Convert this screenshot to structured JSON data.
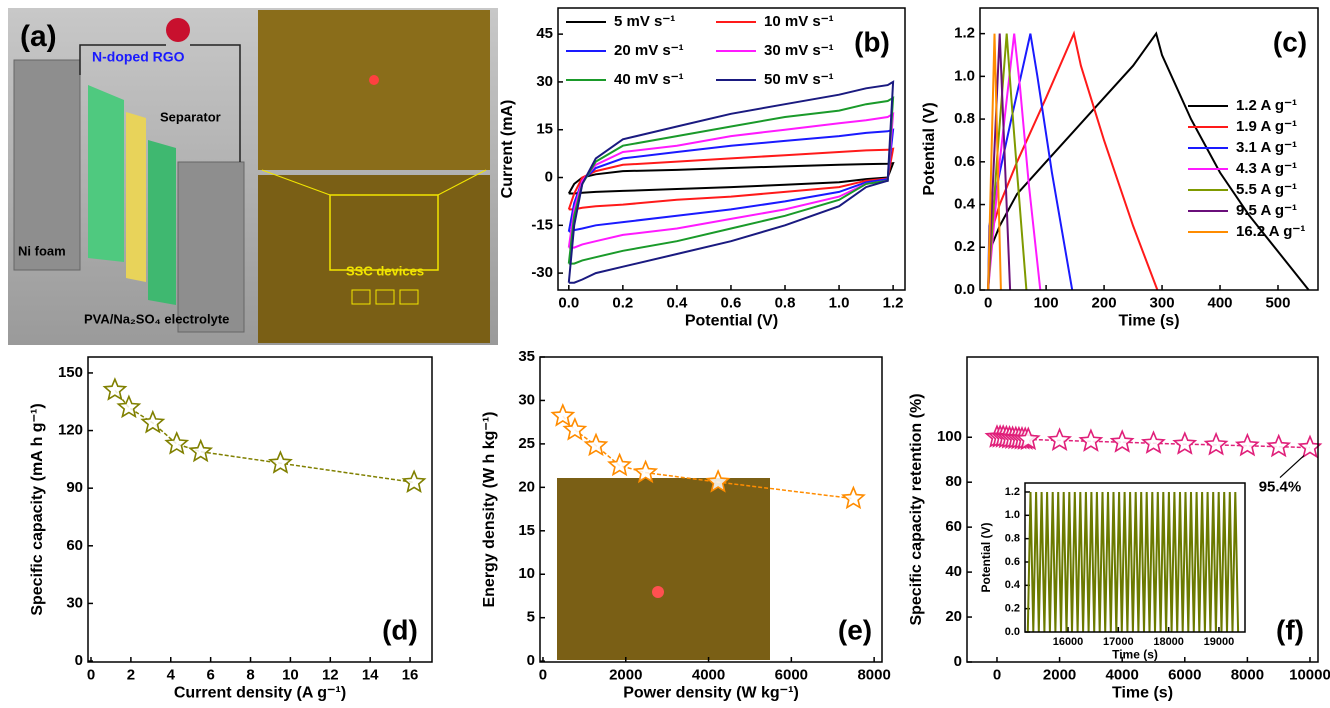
{
  "schematic": {
    "panel_label": "(a)",
    "labels": [
      "N-doped RGO",
      "Separator",
      "Ni foam",
      "PVA/Na₂SO₄ electrolyte",
      "SSC devices"
    ]
  },
  "chart_data": [
    {
      "type": "line",
      "panel_label": "(b)",
      "xlabel": "Potential (V)",
      "ylabel": "Current (mA)",
      "xlim": [
        -0.04,
        1.244
      ],
      "ylim": [
        -35.3,
        53.2
      ],
      "xticks": [
        {
          "value": 0,
          "label": "0.0"
        },
        0.2,
        0.4,
        0.6,
        0.8,
        {
          "value": 1,
          "label": "1.0"
        },
        1.2
      ],
      "yticks": [
        -30,
        -15,
        0,
        15,
        30,
        45
      ],
      "x": [
        0,
        0.02,
        0.05,
        0.1,
        0.2,
        0.4,
        0.6,
        0.8,
        1.0,
        1.1,
        1.18,
        1.2,
        1.18,
        1.1,
        1.0,
        0.8,
        0.6,
        0.4,
        0.2,
        0.1,
        0.05,
        0.02,
        0
      ],
      "legend": "upper left",
      "series": [
        {
          "name": "5 mV s⁻¹",
          "color": "#000000",
          "values": [
            -5,
            -2,
            0,
            1,
            2,
            2.4,
            3,
            3.5,
            4,
            4.2,
            4.3,
            4.5,
            0,
            -0.5,
            -1.5,
            -2.3,
            -3,
            -3.6,
            -4.2,
            -4.5,
            -4.8,
            -5,
            -5
          ]
        },
        {
          "name": "10 mV s⁻¹",
          "color": "#ff1a1a",
          "values": [
            -10,
            -5,
            0,
            2,
            4,
            5,
            6,
            7,
            8,
            8.5,
            8.7,
            9,
            -0.3,
            -1,
            -3,
            -4.5,
            -6,
            -7,
            -8.5,
            -9,
            -9.5,
            -10,
            -10
          ]
        },
        {
          "name": "20 mV s⁻¹",
          "color": "#1a1aff",
          "values": [
            -17,
            -8,
            -1,
            3,
            6,
            8,
            10,
            11.5,
            13,
            14,
            14.5,
            15,
            -0.5,
            -1.5,
            -4.5,
            -7.5,
            -10,
            -12,
            -14,
            -15,
            -16,
            -16.5,
            -17
          ]
        },
        {
          "name": "30 mV s⁻¹",
          "color": "#ff1aff",
          "values": [
            -22,
            -10,
            -1,
            4,
            8,
            10,
            13,
            15,
            17,
            18,
            19,
            20,
            -1,
            -2,
            -6,
            -10,
            -13,
            -16,
            -18,
            -20,
            -21,
            -22,
            -22
          ]
        },
        {
          "name": "40 mV s⁻¹",
          "color": "#1a9a2a",
          "values": [
            -27,
            -12,
            -2,
            5,
            10,
            13,
            16,
            19,
            21,
            23,
            24,
            25,
            -1,
            -2,
            -7,
            -12,
            -16,
            -20,
            -23,
            -25,
            -26,
            -27,
            -27
          ]
        },
        {
          "name": "50 mV s⁻¹",
          "color": "#1a1a80",
          "values": [
            -33,
            -15,
            -2,
            6,
            12,
            16,
            20,
            23,
            26,
            28,
            29,
            30,
            -1,
            -3,
            -9,
            -15,
            -20,
            -24,
            -28,
            -30,
            -32,
            -33,
            -33
          ]
        }
      ]
    },
    {
      "type": "line",
      "panel_label": "(c)",
      "xlabel": "Time (s)",
      "ylabel": "Potential (V)",
      "xlim": [
        -14,
        569
      ],
      "ylim": [
        0,
        1.32
      ],
      "xticks": [
        0,
        100,
        200,
        300,
        400,
        500
      ],
      "yticks": [
        {
          "value": 0,
          "label": "0.0"
        },
        0.2,
        0.4,
        0.6,
        0.8,
        {
          "value": 1,
          "label": "1.0"
        },
        1.2
      ],
      "legend": "right",
      "series": [
        {
          "name": "1.2 A g⁻¹",
          "color": "#000000",
          "x": [
            0,
            5,
            20,
            50,
            100,
            150,
            200,
            250,
            290,
            300,
            350,
            400,
            450,
            500,
            553
          ],
          "values": [
            0,
            0.2,
            0.3,
            0.45,
            0.6,
            0.75,
            0.9,
            1.05,
            1.2,
            1.1,
            0.8,
            0.55,
            0.35,
            0.18,
            0
          ]
        },
        {
          "name": "1.9 A g⁻¹",
          "color": "#ff1a1a",
          "x": [
            0,
            3,
            20,
            50,
            100,
            148,
            160,
            200,
            250,
            292
          ],
          "values": [
            0,
            0.25,
            0.4,
            0.6,
            0.9,
            1.2,
            1.05,
            0.7,
            0.3,
            0
          ]
        },
        {
          "name": "3.1 A g⁻¹",
          "color": "#1a1aff",
          "x": [
            0,
            2,
            20,
            40,
            73,
            85,
            110,
            145
          ],
          "values": [
            0,
            0.3,
            0.55,
            0.8,
            1.2,
            1.0,
            0.55,
            0
          ]
        },
        {
          "name": "4.3 A g⁻¹",
          "color": "#ff1aff",
          "x": [
            0,
            20,
            45,
            55,
            70,
            90
          ],
          "values": [
            0,
            0.6,
            1.2,
            0.95,
            0.5,
            0
          ]
        },
        {
          "name": "5.5 A g⁻¹",
          "color": "#7f9a00",
          "x": [
            0,
            15,
            32,
            40,
            50,
            66
          ],
          "values": [
            0,
            0.6,
            1.2,
            0.9,
            0.55,
            0
          ]
        },
        {
          "name": "9.5 A g⁻¹",
          "color": "#6a0f7a",
          "x": [
            0,
            20,
            38
          ],
          "values": [
            0,
            1.2,
            0
          ]
        },
        {
          "name": "16.2 A g⁻¹",
          "color": "#ff8c00",
          "x": [
            0,
            11,
            22
          ],
          "values": [
            0,
            1.2,
            0
          ]
        }
      ]
    },
    {
      "type": "line",
      "panel_label": "(d)",
      "xlabel": "Current density (A g⁻¹)",
      "ylabel": "Specific capacity (mA h g⁻¹)",
      "xlim": [
        -0.15,
        17.1
      ],
      "ylim": [
        -0.5,
        158.3
      ],
      "xticks": [
        0,
        2,
        4,
        6,
        8,
        10,
        12,
        14,
        16
      ],
      "yticks": [
        0,
        30,
        60,
        90,
        120,
        150
      ],
      "marker": "star",
      "line_style": "dashed",
      "color": "#808000",
      "x": [
        1.2,
        1.9,
        3.1,
        4.3,
        5.5,
        9.5,
        16.2
      ],
      "values": [
        141,
        132,
        124,
        113,
        109,
        103,
        93
      ]
    },
    {
      "type": "line",
      "panel_label": "(e)",
      "xlabel": "Power density (W kg⁻¹)",
      "ylabel": "Energy density (W h kg⁻¹)",
      "xlim": [
        -72,
        8190
      ],
      "ylim": [
        -0.1,
        35
      ],
      "xticks": [
        0,
        2000,
        4000,
        6000,
        8000
      ],
      "yticks": [
        0,
        5,
        10,
        15,
        20,
        25,
        30,
        35
      ],
      "marker": "star",
      "line_style": "dashed",
      "color": "#ff8c00",
      "x": [
        480,
        770,
        1280,
        1850,
        2480,
        4230,
        7500
      ],
      "values": [
        28.2,
        26.6,
        24.8,
        22.5,
        21.7,
        20.6,
        18.7
      ]
    },
    {
      "type": "line",
      "panel_label": "(f)",
      "xlabel": "Time (s)",
      "ylabel": "Specific capacity retention (%)",
      "xlim": [
        -958,
        10256
      ],
      "ylim": [
        0,
        135.7
      ],
      "xticks": [
        0,
        2000,
        4000,
        6000,
        8000,
        10000
      ],
      "yticks": [
        0,
        20,
        40,
        60,
        80,
        100
      ],
      "marker": "star",
      "line_style": "dashed",
      "color": "#e0207a",
      "annotation": {
        "text": "95.4%"
      },
      "x": [
        0,
        100,
        200,
        300,
        400,
        500,
        600,
        700,
        800,
        900,
        1000,
        2000,
        3000,
        4000,
        5000,
        6000,
        7000,
        8000,
        9000,
        10000
      ],
      "values": [
        100,
        100,
        100,
        99.8,
        99.6,
        99.5,
        99.4,
        99.3,
        99.2,
        99.1,
        99,
        98.6,
        98.2,
        97.8,
        97.3,
        96.9,
        96.6,
        96.2,
        95.8,
        95.4
      ]
    },
    {
      "type": "line",
      "xlabel": "Time (s)",
      "ylabel": "Potential (V)",
      "xlim": [
        15145,
        19518
      ],
      "ylim": [
        0,
        1.277
      ],
      "xticks": [
        16000,
        17000,
        18000,
        19000
      ],
      "yticks": [
        {
          "value": 0,
          "label": "0.0"
        },
        0.2,
        0.4,
        0.6,
        0.8,
        {
          "value": 1,
          "label": "1.0"
        },
        1.2
      ],
      "color": "#6b7a00",
      "x": [
        15200,
        15255,
        15310,
        15365,
        15420,
        15475,
        15530,
        15585,
        15640,
        15695,
        15750,
        15805,
        15860,
        15915,
        15970,
        16025,
        16080,
        16135,
        16190,
        16245,
        16300,
        16355,
        16410,
        16465,
        16520,
        16575,
        16630,
        16685,
        16740,
        16795,
        16850,
        16905,
        16960,
        17015,
        17070,
        17125,
        17180,
        17235,
        17290,
        17345,
        17400,
        17455,
        17510,
        17565,
        17620,
        17675,
        17730,
        17785,
        17840,
        17895,
        17950,
        18005,
        18060,
        18115,
        18170,
        18225,
        18280,
        18335,
        18390,
        18445,
        18500,
        18555,
        18610,
        18665,
        18720,
        18775,
        18830,
        18885,
        18940,
        18995,
        19050,
        19105,
        19160,
        19215,
        19270,
        19325,
        19380
      ],
      "values": [
        0,
        1.2,
        0,
        1.2,
        0,
        1.2,
        0,
        1.2,
        0,
        1.2,
        0,
        1.2,
        0,
        1.2,
        0,
        1.2,
        0,
        1.2,
        0,
        1.2,
        0,
        1.2,
        0,
        1.2,
        0,
        1.2,
        0,
        1.2,
        0,
        1.2,
        0,
        1.2,
        0,
        1.2,
        0,
        1.2,
        0,
        1.2,
        0,
        1.2,
        0,
        1.2,
        0,
        1.2,
        0,
        1.2,
        0,
        1.2,
        0,
        1.2,
        0,
        1.2,
        0,
        1.2,
        0,
        1.2,
        0,
        1.2,
        0,
        1.2,
        0,
        1.2,
        0,
        1.2,
        0,
        1.2,
        0,
        1.2,
        0,
        1.2,
        0,
        1.2,
        0,
        1.2,
        0,
        1.2,
        0
      ]
    }
  ]
}
